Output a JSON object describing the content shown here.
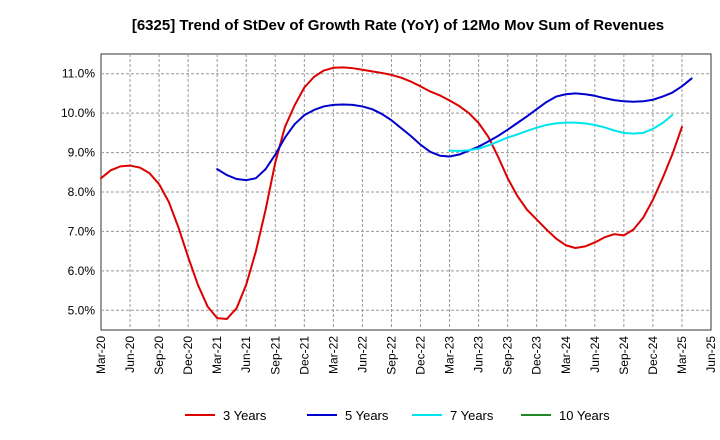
{
  "chart_data": {
    "type": "line",
    "title": "[6325]  Trend of StDev of Growth Rate (YoY) of 12Mo Mov Sum of Revenues",
    "xlabel": "",
    "ylabel": "",
    "ylim": [
      4.5,
      11.5
    ],
    "y_ticks": [
      5.0,
      6.0,
      7.0,
      8.0,
      9.0,
      10.0,
      11.0
    ],
    "y_tick_labels": [
      "5.0%",
      "6.0%",
      "7.0%",
      "8.0%",
      "9.0%",
      "10.0%",
      "11.0%"
    ],
    "x_tick_labels": [
      "Mar-20",
      "Jun-20",
      "Sep-20",
      "Dec-20",
      "Mar-21",
      "Jun-21",
      "Sep-21",
      "Dec-21",
      "Mar-22",
      "Jun-22",
      "Sep-22",
      "Dec-22",
      "Mar-23",
      "Jun-23",
      "Sep-23",
      "Dec-23",
      "Mar-24",
      "Jun-24",
      "Sep-24",
      "Dec-24",
      "Mar-25",
      "Jun-25"
    ],
    "grid": true,
    "legend_position": "bottom",
    "series": [
      {
        "name": "3 Years",
        "color": "#dd0000",
        "start_index": 0,
        "values": [
          8.35,
          8.55,
          8.65,
          8.67,
          8.62,
          8.48,
          8.2,
          7.75,
          7.1,
          6.35,
          5.65,
          5.1,
          4.8,
          4.78,
          5.05,
          5.65,
          6.5,
          7.55,
          8.75,
          9.65,
          10.2,
          10.65,
          10.92,
          11.08,
          11.15,
          11.16,
          11.14,
          11.1,
          11.06,
          11.02,
          10.97,
          10.9,
          10.8,
          10.68,
          10.55,
          10.45,
          10.32,
          10.18,
          10.0,
          9.75,
          9.4,
          8.9,
          8.35,
          7.9,
          7.55,
          7.3,
          7.05,
          6.82,
          6.65,
          6.58,
          6.62,
          6.72,
          6.85,
          6.93,
          6.9,
          7.05,
          7.35,
          7.8,
          8.35,
          8.95,
          9.65
        ]
      },
      {
        "name": "5 Years",
        "color": "#0000cc",
        "start_index": 12,
        "values": [
          8.58,
          8.43,
          8.33,
          8.3,
          8.35,
          8.58,
          8.95,
          9.38,
          9.72,
          9.95,
          10.08,
          10.17,
          10.21,
          10.22,
          10.21,
          10.17,
          10.1,
          9.98,
          9.82,
          9.62,
          9.42,
          9.2,
          9.02,
          8.92,
          8.9,
          8.95,
          9.05,
          9.15,
          9.28,
          9.42,
          9.58,
          9.75,
          9.92,
          10.1,
          10.28,
          10.42,
          10.48,
          10.5,
          10.48,
          10.44,
          10.38,
          10.33,
          10.3,
          10.29,
          10.3,
          10.34,
          10.42,
          10.52,
          10.68,
          10.88
        ]
      },
      {
        "name": "7 Years",
        "color": "#00e5ee",
        "start_index": 36,
        "values": [
          9.05,
          9.04,
          9.06,
          9.1,
          9.18,
          9.28,
          9.38,
          9.46,
          9.55,
          9.63,
          9.7,
          9.74,
          9.76,
          9.76,
          9.74,
          9.7,
          9.64,
          9.56,
          9.5,
          9.48,
          9.5,
          9.6,
          9.75,
          9.95
        ]
      },
      {
        "name": "10 Years",
        "color": "#228822",
        "start_index": 0,
        "values": []
      }
    ]
  }
}
